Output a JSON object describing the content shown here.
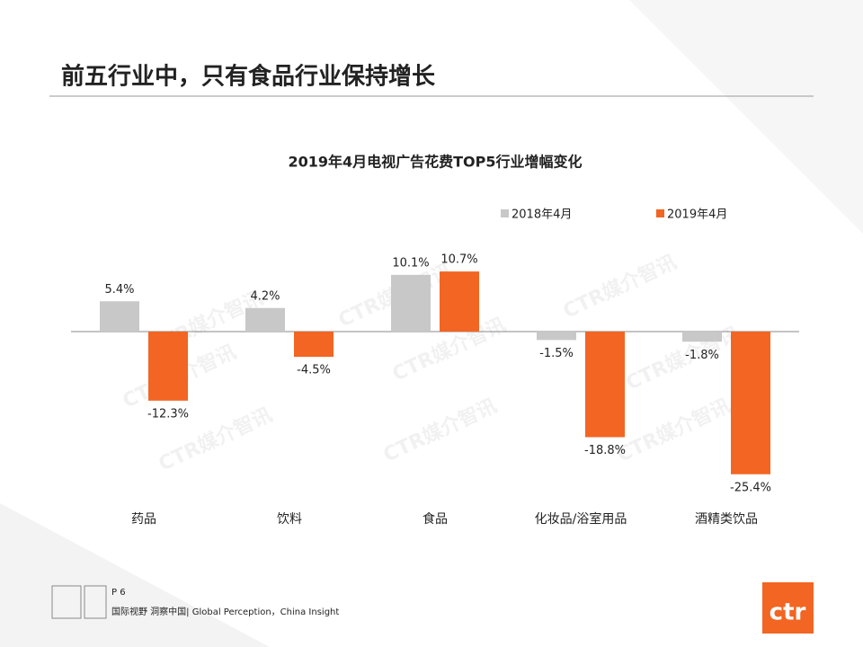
{
  "header": {
    "title": "前五行业中，只有食品行业保持增长"
  },
  "watermark": "CTR媒介智讯",
  "chart_data": {
    "type": "bar",
    "title": "2019年4月电视广告花费TOP5行业增幅变化",
    "categories": [
      "药品",
      "饮料",
      "食品",
      "化妆品/浴室用品",
      "酒精类饮品"
    ],
    "series": [
      {
        "name": "2018年4月",
        "color": "#c8c8c8",
        "values": [
          5.4,
          4.2,
          10.1,
          -1.5,
          -1.8
        ],
        "value_labels": [
          "5.4%",
          "4.2%",
          "10.1%",
          "-1.5%",
          "-1.8%"
        ]
      },
      {
        "name": "2019年4月",
        "color": "#f26522",
        "values": [
          -12.3,
          -4.5,
          10.7,
          -18.8,
          -25.4
        ],
        "value_labels": [
          "-12.3%",
          "-4.5%",
          "10.7%",
          "-18.8%",
          "-25.4%"
        ]
      }
    ],
    "legend": "top-right"
  },
  "footer": {
    "page": "P 6",
    "slogan": "国际视野 洞察中国| Global Perception，China Insight",
    "logo": "ctr"
  }
}
